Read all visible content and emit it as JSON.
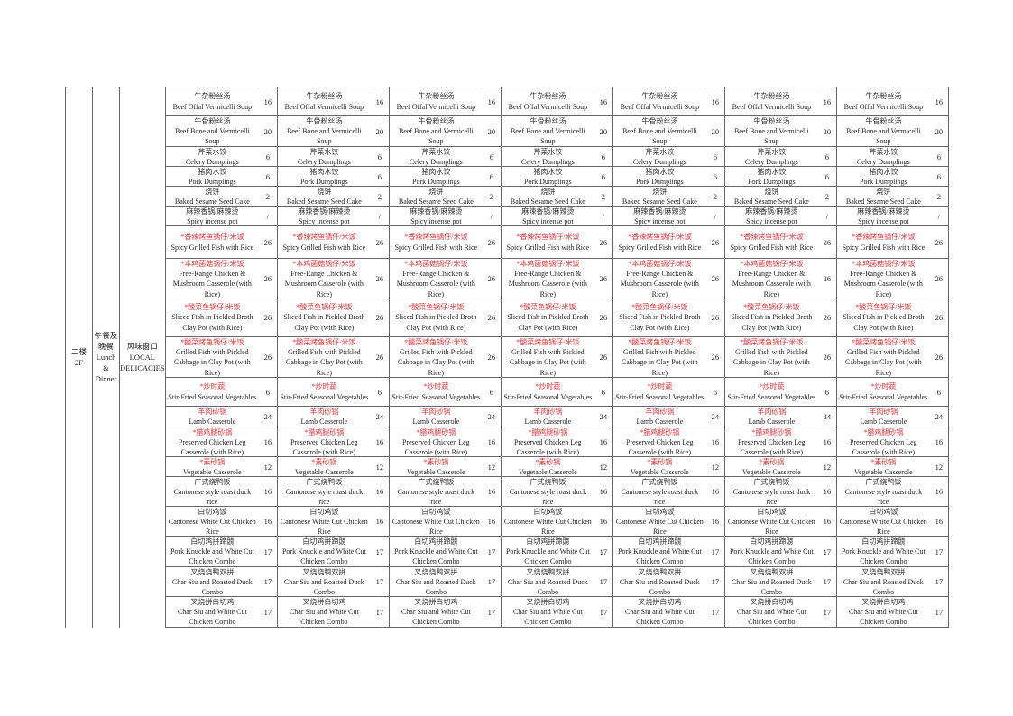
{
  "floor": {
    "cn": "二楼",
    "en": "2F"
  },
  "meal": {
    "cn": "午餐及晚餐",
    "en": "Lunch & Dinner"
  },
  "window": {
    "cn": "风味窗口",
    "en": "LOCAL DELICACIES"
  },
  "colors": {
    "highlight": "#e8343a"
  },
  "menu": {
    "items": [
      {
        "cn": "牛杂粉丝汤",
        "en": "Beef Offal Vermicelli Soup",
        "price": "16",
        "red": false
      },
      {
        "cn": "牛骨粉丝汤",
        "en": "Beef Bone and Vermicelli Soup",
        "price": "20",
        "red": false
      },
      {
        "cn": "芹菜水饺",
        "en": "Celery Dumplings",
        "price": "6",
        "red": false
      },
      {
        "cn": "猪肉水饺",
        "en": "Pork Dumplings",
        "price": "6",
        "red": false
      },
      {
        "cn": "烧饼",
        "en": "Baked Sesame Seed Cake",
        "price": "2",
        "red": false
      },
      {
        "cn": "麻辣香锅/麻辣烫",
        "en": "Spicy incense pot",
        "price": "/",
        "red": false
      },
      {
        "cn": "*香辣烤鱼锅仔/米饭",
        "en": "Spicy Grilled Fish with Rice",
        "price": "26",
        "red": true
      },
      {
        "cn": "*本鸡菌菇锅仔/米饭",
        "en": "Free-Range Chicken & Mushroom Casserole (with Rice)",
        "price": "26",
        "red": true
      },
      {
        "cn": "*酸菜鱼锅仔/米饭",
        "en": "Sliced Fish in Pickled Broth Clay Pot (with Rice)",
        "price": "26",
        "red": true
      },
      {
        "cn": "*酸菜烤鱼锅仔/米饭",
        "en": "Grilled Fish with Pickled Cabbage in Clay Pot (with Rice)",
        "price": "26",
        "red": true
      },
      {
        "cn": "*炒时蔬",
        "en": "Stir-Fried Seasonal Vegetables",
        "price": "6",
        "red": true
      },
      {
        "cn": "羊肉砂锅",
        "en": "Lamb Casserole",
        "price": "24",
        "red": true
      },
      {
        "cn": "*腊鸡腿砂锅",
        "en": "Preserved Chicken Leg Casserole (with Rice)",
        "price": "16",
        "red": true
      },
      {
        "cn": "*素砂锅",
        "en": "Vegetable Casserole",
        "price": "12",
        "red": true
      },
      {
        "cn": "广式烧鸭饭",
        "en": "Cantonese style roast duck rice",
        "price": "16",
        "red": false
      },
      {
        "cn": "白切鸡饭",
        "en": "Cantonese White Cut Chicken Rice",
        "price": "16",
        "red": false
      },
      {
        "cn": "白切鸡拼蹄髈",
        "en": "Pork Knuckle and White Cut Chicken Combo",
        "price": "17",
        "red": false
      },
      {
        "cn": "叉烧烧鸭双拼",
        "en": "Char Siu and Roasted Duck Combo",
        "price": "17",
        "red": false
      },
      {
        "cn": "叉烧拼白切鸡",
        "en": "Char Siu and White Cut Chicken Combo",
        "price": "17",
        "red": false
      }
    ]
  }
}
